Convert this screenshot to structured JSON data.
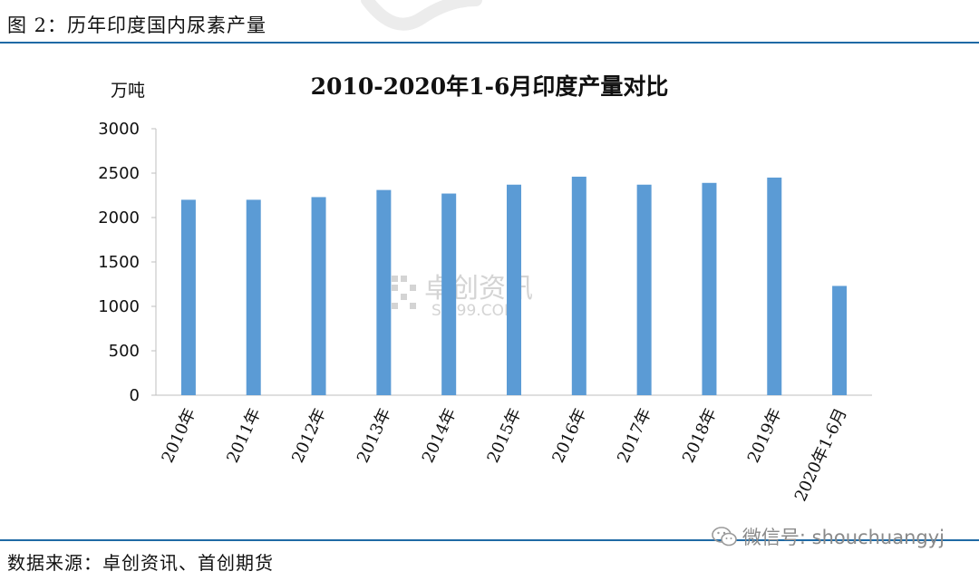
{
  "figure": {
    "title": "图 2：历年印度国内尿素产量",
    "source": "数据来源：卓创资讯、首创期货"
  },
  "watermark": {
    "brand_cn": "卓创资讯",
    "brand_en": "SCI99.COM",
    "wechat": "微信号: shouchuangyj"
  },
  "colors": {
    "bar": "#5b9bd5",
    "rule": "#1f6aa5",
    "axis": "#bfbfbf"
  },
  "chart_data": {
    "type": "bar",
    "title": "2010-2020年1-6月印度产量对比",
    "unit_label": "万吨",
    "categories": [
      "2010年",
      "2011年",
      "2012年",
      "2013年",
      "2014年",
      "2015年",
      "2016年",
      "2017年",
      "2018年",
      "2019年",
      "2020年1-6月"
    ],
    "values": [
      2200,
      2200,
      2230,
      2310,
      2270,
      2370,
      2460,
      2370,
      2390,
      2450,
      1230
    ],
    "ylim": [
      0,
      3000
    ],
    "yticks": [
      "0",
      "500",
      "1000",
      "1500",
      "2000",
      "2500",
      "3000"
    ],
    "grid": false,
    "legend": "none"
  }
}
